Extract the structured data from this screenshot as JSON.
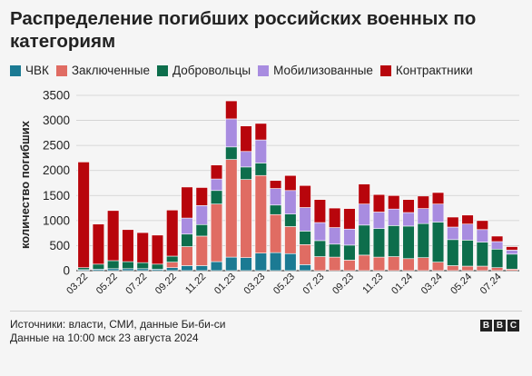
{
  "title": "Распределение погибших российских военных по категориям",
  "footer": {
    "line1": "Источники: власти, СМИ, данные Би-би-си",
    "line2": "Данные на 10:00 мск 23 августа 2024"
  },
  "bbc_logo": [
    "B",
    "B",
    "C"
  ],
  "chart_data": {
    "type": "bar",
    "stacked": true,
    "ylabel": "количество погибших",
    "xlabel": "",
    "ylim": [
      0,
      3500
    ],
    "yticks": [
      0,
      500,
      1000,
      1500,
      2000,
      2500,
      3000,
      3500
    ],
    "grid": true,
    "legend_position": "top",
    "categories": [
      "03.22",
      "04.22",
      "05.22",
      "06.22",
      "07.22",
      "08.22",
      "09.22",
      "10.22",
      "11.22",
      "12.22",
      "01.23",
      "02.23",
      "03.23",
      "04.23",
      "05.23",
      "06.23",
      "07.23",
      "08.23",
      "09.23",
      "10.23",
      "11.23",
      "12.23",
      "01.24",
      "02.24",
      "03.24",
      "04.24",
      "05.24",
      "06.24",
      "07.24",
      "08.24"
    ],
    "xtick_labels": [
      "03.22",
      "05.22",
      "07.22",
      "09.22",
      "11.22",
      "01.23",
      "03.23",
      "05.23",
      "07.23",
      "09.23",
      "11.23",
      "01.24",
      "03.24",
      "05.24",
      "07.24"
    ],
    "series": [
      {
        "name": "ЧВК",
        "color": "#1b7a93",
        "values": [
          20,
          30,
          40,
          40,
          40,
          30,
          60,
          100,
          100,
          180,
          270,
          260,
          350,
          360,
          340,
          120,
          0,
          0,
          0,
          0,
          0,
          0,
          0,
          0,
          0,
          0,
          0,
          0,
          0,
          0
        ]
      },
      {
        "name": "Заключенные",
        "color": "#e06c63",
        "values": [
          0,
          0,
          0,
          0,
          0,
          0,
          110,
          380,
          590,
          1150,
          1950,
          1560,
          1550,
          760,
          540,
          400,
          280,
          270,
          210,
          310,
          270,
          280,
          240,
          260,
          170,
          100,
          90,
          90,
          60,
          30
        ]
      },
      {
        "name": "Добровольцы",
        "color": "#0d6e4c",
        "values": [
          40,
          100,
          160,
          140,
          120,
          100,
          120,
          250,
          230,
          270,
          250,
          250,
          250,
          190,
          250,
          270,
          320,
          260,
          300,
          600,
          570,
          620,
          650,
          680,
          800,
          520,
          520,
          480,
          370,
          300
        ]
      },
      {
        "name": "Мобилизованные",
        "color": "#a88ce0",
        "values": [
          0,
          0,
          0,
          0,
          0,
          0,
          0,
          320,
          380,
          230,
          560,
          310,
          460,
          330,
          470,
          470,
          360,
          330,
          320,
          420,
          330,
          330,
          270,
          300,
          360,
          250,
          320,
          250,
          150,
          80
        ]
      },
      {
        "name": "Контрактники",
        "color": "#b8050c",
        "values": [
          2110,
          800,
          1000,
          640,
          600,
          580,
          920,
          620,
          360,
          280,
          360,
          510,
          330,
          160,
          300,
          440,
          460,
          390,
          410,
          400,
          350,
          270,
          260,
          250,
          230,
          200,
          180,
          180,
          110,
          70
        ]
      }
    ]
  }
}
